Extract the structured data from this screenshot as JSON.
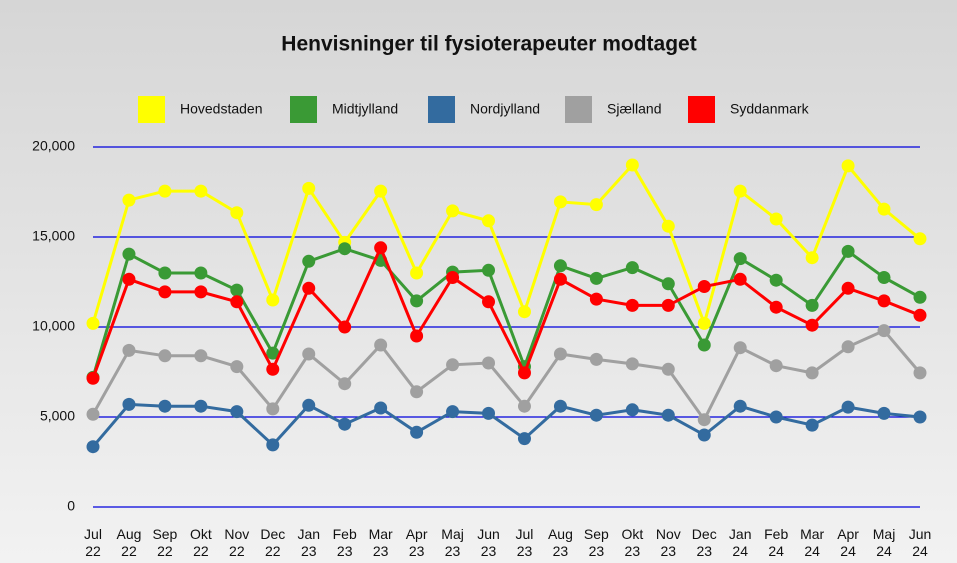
{
  "chart_data": {
    "type": "line",
    "title": "Henvisninger til fysioterapeuter modtaget",
    "categories": [
      "Jul 22",
      "Aug 22",
      "Sep 22",
      "Okt 22",
      "Nov 22",
      "Dec 22",
      "Jan 23",
      "Feb 23",
      "Mar 23",
      "Apr 23",
      "Maj 23",
      "Jun 23",
      "Jul 23",
      "Aug 23",
      "Sep 23",
      "Okt 23",
      "Nov 23",
      "Dec 23",
      "Jan 24",
      "Feb 24",
      "Mar 24",
      "Apr 24",
      "Maj 24",
      "Jun 24"
    ],
    "series": [
      {
        "name": "Hovedstaden",
        "color": "#ffff00",
        "values": [
          10200,
          17050,
          17550,
          17550,
          16350,
          11500,
          17700,
          14700,
          17550,
          13000,
          16450,
          15900,
          10850,
          16950,
          16800,
          19000,
          15600,
          10200,
          17550,
          16000,
          13850,
          18950,
          16550,
          14900
        ]
      },
      {
        "name": "Midtjylland",
        "color": "#3a9a35",
        "values": [
          7200,
          14050,
          13000,
          13000,
          12050,
          8550,
          13650,
          14350,
          13700,
          11450,
          13050,
          13150,
          7800,
          13400,
          12700,
          13300,
          12400,
          9000,
          13800,
          12600,
          11200,
          14200,
          12750,
          11650
        ]
      },
      {
        "name": "Nordjylland",
        "color": "#336b9f",
        "values": [
          3350,
          5700,
          5600,
          5600,
          5300,
          3450,
          5650,
          4600,
          5500,
          4150,
          5300,
          5200,
          3800,
          5600,
          5100,
          5400,
          5100,
          4000,
          5600,
          5000,
          4550,
          5550,
          5200,
          5000
        ]
      },
      {
        "name": "Sjælland",
        "color": "#a0a0a0",
        "values": [
          5150,
          8700,
          8400,
          8400,
          7800,
          5450,
          8500,
          6850,
          9000,
          6400,
          7900,
          8000,
          5600,
          8500,
          8200,
          7950,
          7650,
          4850,
          8850,
          7850,
          7450,
          8900,
          9800,
          7450
        ]
      },
      {
        "name": "Syddanmark",
        "color": "#ff0000",
        "values": [
          7150,
          12650,
          11950,
          11950,
          11400,
          7650,
          12150,
          10000,
          14400,
          9500,
          12750,
          11400,
          7450,
          12650,
          11550,
          11200,
          11200,
          12250,
          12650,
          11100,
          10100,
          12150,
          11450,
          10650
        ]
      }
    ],
    "ylim": [
      0,
      20000
    ],
    "yticks": [
      0,
      {
        "value": 5000,
        "label": "5,000"
      },
      {
        "value": 10000,
        "label": "10,000"
      },
      {
        "value": 15000,
        "label": "15,000"
      },
      {
        "value": 20000,
        "label": "20,000"
      }
    ],
    "grid": true,
    "grid_color": "#0000dd",
    "legend": "top"
  }
}
